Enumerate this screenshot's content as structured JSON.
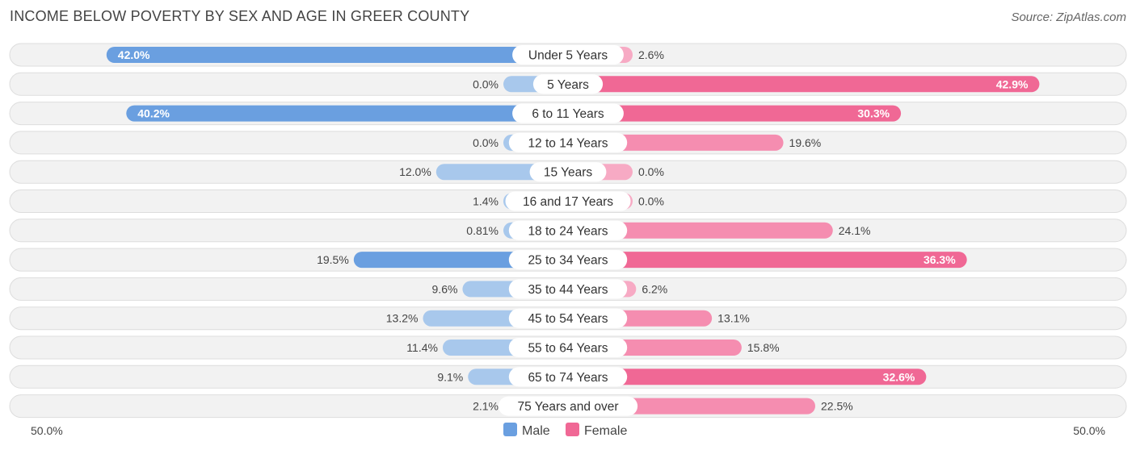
{
  "header": {
    "title": "INCOME BELOW POVERTY BY SEX AND AGE IN GREER COUNTY",
    "source": "Source: ZipAtlas.com"
  },
  "axis": {
    "left_label": "50.0%",
    "right_label": "50.0%"
  },
  "legend": [
    {
      "name": "Male",
      "color": "#6a9fe0"
    },
    {
      "name": "Female",
      "color": "#f06895"
    }
  ],
  "chart_data": {
    "type": "bar",
    "orientation": "horizontal-diverging",
    "title": "INCOME BELOW POVERTY BY SEX AND AGE IN GREER COUNTY",
    "xlim": [
      -50,
      50
    ],
    "legend_position": "bottom-center",
    "categories": [
      "Under 5 Years",
      "5 Years",
      "6 to 11 Years",
      "12 to 14 Years",
      "15 Years",
      "16 and 17 Years",
      "18 to 24 Years",
      "25 to 34 Years",
      "35 to 44 Years",
      "45 to 54 Years",
      "55 to 64 Years",
      "65 to 74 Years",
      "75 Years and over"
    ],
    "series": [
      {
        "name": "Male",
        "values": [
          42.0,
          0.0,
          40.2,
          0.0,
          12.0,
          1.4,
          0.81,
          19.5,
          9.6,
          13.2,
          11.4,
          9.1,
          2.1
        ],
        "labels": [
          "42.0%",
          "0.0%",
          "40.2%",
          "0.0%",
          "12.0%",
          "1.4%",
          "0.81%",
          "19.5%",
          "9.6%",
          "13.2%",
          "11.4%",
          "9.1%",
          "2.1%"
        ]
      },
      {
        "name": "Female",
        "values": [
          2.6,
          42.9,
          30.3,
          19.6,
          0.0,
          0.0,
          24.1,
          36.3,
          6.2,
          13.1,
          15.8,
          32.6,
          22.5
        ],
        "labels": [
          "2.6%",
          "42.9%",
          "30.3%",
          "19.6%",
          "0.0%",
          "0.0%",
          "24.1%",
          "36.3%",
          "6.2%",
          "13.1%",
          "15.8%",
          "32.6%",
          "22.5%"
        ]
      }
    ]
  }
}
